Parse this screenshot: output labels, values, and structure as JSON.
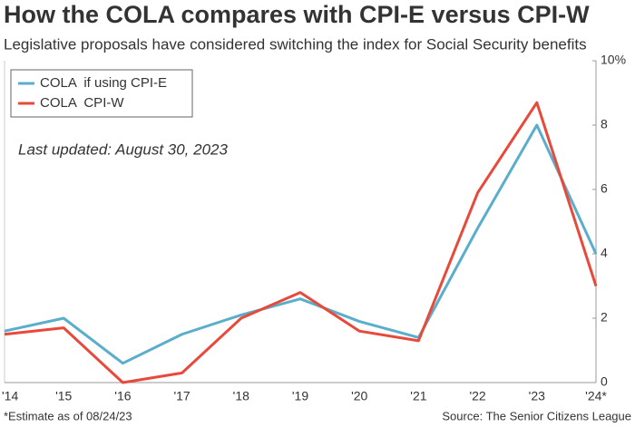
{
  "chart_data": {
    "type": "line",
    "title": "How the COLA compares with CPI-E versus CPI-W",
    "subtitle": "Legislative proposals have considered switching the index for Social Security benefits",
    "annotation": "Last updated: August 30, 2023",
    "footnote": "*Estimate as of 08/24/23",
    "source": "Source: The Senior Citizens League",
    "categories": [
      "'14",
      "'15",
      "'16",
      "'17",
      "'18",
      "'19",
      "'20",
      "'21",
      "'22",
      "'23",
      "'24*"
    ],
    "series": [
      {
        "name": "COLA  if using CPI-E",
        "color": "#5aaecc",
        "values": [
          1.6,
          2.0,
          0.6,
          1.5,
          2.1,
          2.6,
          1.9,
          1.4,
          4.8,
          8.0,
          4.0
        ]
      },
      {
        "name": "COLA  CPI-W",
        "color": "#e8493a",
        "values": [
          1.5,
          1.7,
          0.0,
          0.3,
          2.0,
          2.8,
          1.6,
          1.3,
          5.9,
          8.7,
          3.0
        ]
      }
    ],
    "ylim": [
      0,
      10
    ],
    "yticks": [
      0,
      2,
      4,
      6,
      8,
      {
        "value": 10,
        "label": "10%"
      }
    ],
    "grid": false,
    "legend": "top-left"
  }
}
